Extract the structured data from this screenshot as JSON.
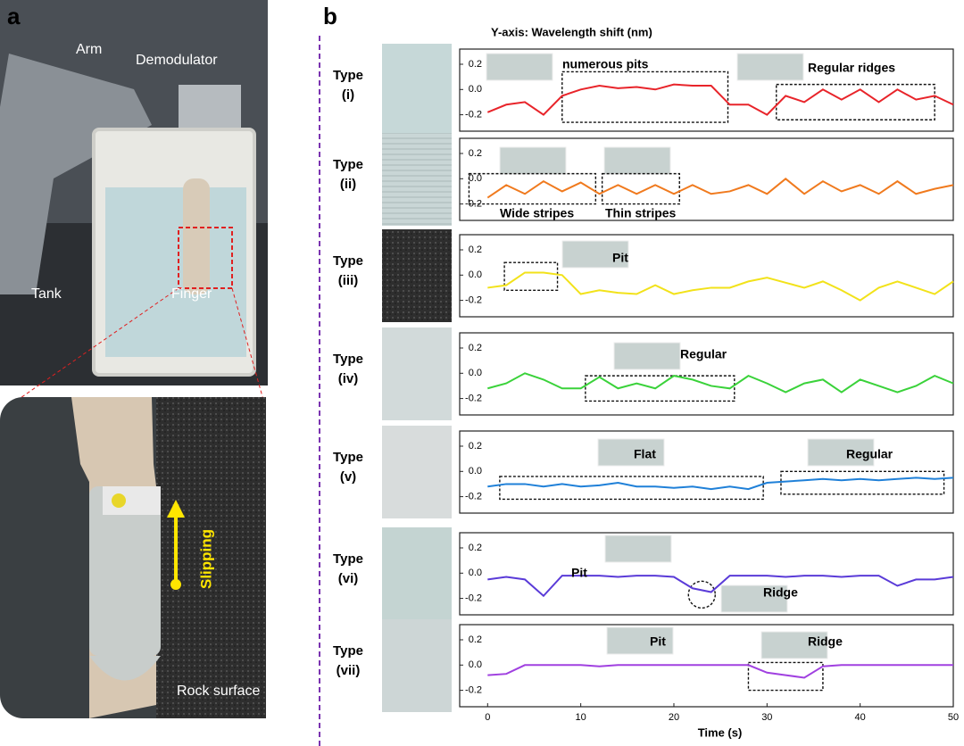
{
  "panel_labels": [
    "a",
    "b"
  ],
  "photo_labels": {
    "arm": "Arm",
    "demodulator": "Demodulator",
    "tank": "Tank",
    "finger": "Finger",
    "slipping": "Slipping",
    "rock": "Rock surface"
  },
  "y_axis_note": "Y-axis: Wavelength shift (nm)",
  "chart_data": [
    {
      "type": "line",
      "label": [
        "Type",
        "(i)"
      ],
      "color": "#e8242a",
      "xlim": [
        -3,
        50
      ],
      "ylim": [
        -0.33,
        0.32
      ],
      "yticks": [
        -0.2,
        {
          "value": 0,
          "label": "0.0"
        },
        0.2
      ],
      "x": [
        0,
        2,
        4,
        6,
        8,
        10,
        12,
        14,
        16,
        18,
        20,
        22,
        24,
        26,
        28,
        30,
        32,
        34,
        36,
        38,
        40,
        42,
        44,
        46,
        48,
        50
      ],
      "values": [
        -0.18,
        -0.12,
        -0.1,
        -0.2,
        -0.05,
        0.0,
        0.03,
        0.01,
        0.02,
        0.0,
        0.04,
        0.03,
        0.03,
        -0.12,
        -0.12,
        -0.2,
        -0.05,
        -0.1,
        0.0,
        -0.08,
        0.0,
        -0.1,
        0.0,
        -0.08,
        -0.05,
        -0.12
      ],
      "annotations": [
        "numerous pits",
        "Regular ridges"
      ]
    },
    {
      "type": "line",
      "label": [
        "Type",
        "(ii)"
      ],
      "color": "#f07a1e",
      "xlim": [
        -3,
        50
      ],
      "ylim": [
        -0.33,
        0.32
      ],
      "yticks": [
        -0.2,
        {
          "value": 0,
          "label": "0.0"
        },
        0.2
      ],
      "x": [
        0,
        2,
        4,
        6,
        8,
        10,
        12,
        14,
        16,
        18,
        20,
        22,
        24,
        26,
        28,
        30,
        32,
        34,
        36,
        38,
        40,
        42,
        44,
        46,
        48,
        50
      ],
      "values": [
        -0.15,
        -0.05,
        -0.12,
        -0.02,
        -0.1,
        -0.03,
        -0.12,
        -0.05,
        -0.12,
        -0.05,
        -0.12,
        -0.05,
        -0.12,
        -0.1,
        -0.05,
        -0.12,
        0.0,
        -0.12,
        -0.02,
        -0.1,
        -0.05,
        -0.12,
        -0.02,
        -0.12,
        -0.08,
        -0.05
      ],
      "annotations": [
        "Wide stripes",
        "Thin stripes"
      ]
    },
    {
      "type": "line",
      "label": [
        "Type",
        "(iii)"
      ],
      "color": "#f2e21a",
      "xlim": [
        -3,
        50
      ],
      "ylim": [
        -0.33,
        0.32
      ],
      "yticks": [
        -0.2,
        {
          "value": 0,
          "label": "0.0"
        },
        0.2
      ],
      "x": [
        0,
        2,
        4,
        6,
        8,
        10,
        12,
        14,
        16,
        18,
        20,
        22,
        24,
        26,
        28,
        30,
        32,
        34,
        36,
        38,
        40,
        42,
        44,
        46,
        48,
        50
      ],
      "values": [
        -0.1,
        -0.08,
        0.02,
        0.02,
        0.0,
        -0.15,
        -0.12,
        -0.14,
        -0.15,
        -0.08,
        -0.15,
        -0.12,
        -0.1,
        -0.1,
        -0.05,
        -0.02,
        -0.06,
        -0.1,
        -0.05,
        -0.12,
        -0.2,
        -0.1,
        -0.05,
        -0.1,
        -0.15,
        -0.05
      ],
      "annotations": [
        "Pit"
      ]
    },
    {
      "type": "line",
      "label": [
        "Type",
        "(iv)"
      ],
      "color": "#3ad23a",
      "xlim": [
        -3,
        50
      ],
      "ylim": [
        -0.33,
        0.32
      ],
      "yticks": [
        -0.2,
        {
          "value": 0,
          "label": "0.0"
        },
        0.2
      ],
      "x": [
        0,
        2,
        4,
        6,
        8,
        10,
        12,
        14,
        16,
        18,
        20,
        22,
        24,
        26,
        28,
        30,
        32,
        34,
        36,
        38,
        40,
        42,
        44,
        46,
        48,
        50
      ],
      "values": [
        -0.12,
        -0.08,
        0.0,
        -0.05,
        -0.12,
        -0.12,
        -0.03,
        -0.12,
        -0.08,
        -0.12,
        -0.02,
        -0.05,
        -0.1,
        -0.12,
        -0.02,
        -0.08,
        -0.15,
        -0.08,
        -0.05,
        -0.15,
        -0.05,
        -0.1,
        -0.15,
        -0.1,
        -0.02,
        -0.08
      ],
      "annotations": [
        "Regular"
      ]
    },
    {
      "type": "line",
      "label": [
        "Type",
        "(v)"
      ],
      "color": "#1f80d8",
      "xlim": [
        -3,
        50
      ],
      "ylim": [
        -0.33,
        0.32
      ],
      "yticks": [
        -0.2,
        {
          "value": 0,
          "label": "0.0"
        },
        0.2
      ],
      "x": [
        0,
        2,
        4,
        6,
        8,
        10,
        12,
        14,
        16,
        18,
        20,
        22,
        24,
        26,
        28,
        30,
        32,
        34,
        36,
        38,
        40,
        42,
        44,
        46,
        48,
        50
      ],
      "values": [
        -0.12,
        -0.1,
        -0.1,
        -0.12,
        -0.1,
        -0.12,
        -0.11,
        -0.09,
        -0.12,
        -0.12,
        -0.13,
        -0.12,
        -0.14,
        -0.12,
        -0.14,
        -0.09,
        -0.08,
        -0.07,
        -0.06,
        -0.07,
        -0.06,
        -0.07,
        -0.06,
        -0.05,
        -0.06,
        -0.05
      ],
      "annotations": [
        "Flat",
        "Regular"
      ]
    },
    {
      "type": "line",
      "label": [
        "Type",
        "(vi)"
      ],
      "color": "#5a3bd8",
      "xlim": [
        -3,
        50
      ],
      "ylim": [
        -0.33,
        0.32
      ],
      "yticks": [
        -0.2,
        {
          "value": 0,
          "label": "0.0"
        },
        0.2
      ],
      "x": [
        0,
        2,
        4,
        6,
        8,
        10,
        12,
        14,
        16,
        18,
        20,
        22,
        24,
        26,
        28,
        30,
        32,
        34,
        36,
        38,
        40,
        42,
        44,
        46,
        48,
        50
      ],
      "values": [
        -0.05,
        -0.03,
        -0.05,
        -0.18,
        -0.02,
        -0.02,
        -0.02,
        -0.03,
        -0.02,
        -0.02,
        -0.03,
        -0.12,
        -0.15,
        -0.02,
        -0.02,
        -0.02,
        -0.03,
        -0.02,
        -0.02,
        -0.03,
        -0.02,
        -0.02,
        -0.1,
        -0.05,
        -0.05,
        -0.03
      ],
      "annotations": [
        "Pit",
        "Ridge"
      ]
    },
    {
      "type": "line",
      "label": [
        "Type",
        "(vii)"
      ],
      "color": "#a040e0",
      "xlim": [
        -3,
        50
      ],
      "ylim": [
        -0.33,
        0.32
      ],
      "yticks": [
        -0.2,
        {
          "value": 0,
          "label": "0.0"
        },
        0.2
      ],
      "x": [
        0,
        2,
        4,
        6,
        8,
        10,
        12,
        14,
        16,
        18,
        20,
        22,
        24,
        26,
        28,
        30,
        32,
        34,
        36,
        38,
        40,
        42,
        44,
        46,
        48,
        50
      ],
      "values": [
        -0.08,
        -0.07,
        0.0,
        0.0,
        0.0,
        0.0,
        -0.01,
        0.0,
        0.0,
        0.0,
        0.0,
        0.0,
        0.0,
        0.0,
        0.0,
        -0.06,
        -0.08,
        -0.1,
        -0.01,
        0.0,
        0.0,
        0.0,
        0.0,
        0.0,
        0.0,
        0.0
      ],
      "annotations": [
        "Pit",
        "Ridge"
      ],
      "xticks": [
        0,
        10,
        20,
        30,
        40,
        50
      ],
      "xlabel": "Time (s)"
    }
  ]
}
